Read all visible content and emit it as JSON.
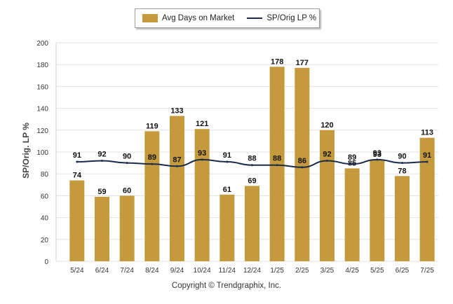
{
  "legend": {
    "bar_label": "Avg Days on Market",
    "line_label": "SP/Orig LP %"
  },
  "copyright": "Copyright © Trendgraphix, Inc.",
  "colors": {
    "bar": "#c49a3c",
    "line": "#1b2b4b",
    "grid": "#e3e3e3",
    "axis_text": "#333333"
  },
  "chart_data": {
    "type": "bar",
    "categories": [
      "5/24",
      "6/24",
      "7/24",
      "8/24",
      "9/24",
      "10/24",
      "11/24",
      "12/24",
      "1/25",
      "2/25",
      "3/25",
      "4/25",
      "5/25",
      "6/25",
      "7/25"
    ],
    "series": [
      {
        "name": "Avg Days on Market",
        "type": "bar",
        "values": [
          74,
          59,
          60,
          119,
          133,
          121,
          61,
          69,
          178,
          177,
          120,
          85,
          93,
          78,
          113
        ]
      },
      {
        "name": "SP/Orig LP %",
        "type": "line",
        "values": [
          91,
          92,
          90,
          89,
          87,
          93,
          91,
          88,
          88,
          86,
          92,
          89,
          93,
          90,
          91
        ]
      }
    ],
    "ylabel": "SP/Orig. LP %",
    "ylim": [
      0,
      200
    ],
    "yticks": [
      0,
      20,
      40,
      60,
      80,
      100,
      120,
      140,
      160,
      180,
      200
    ],
    "grid": true,
    "legend_position": "top"
  }
}
